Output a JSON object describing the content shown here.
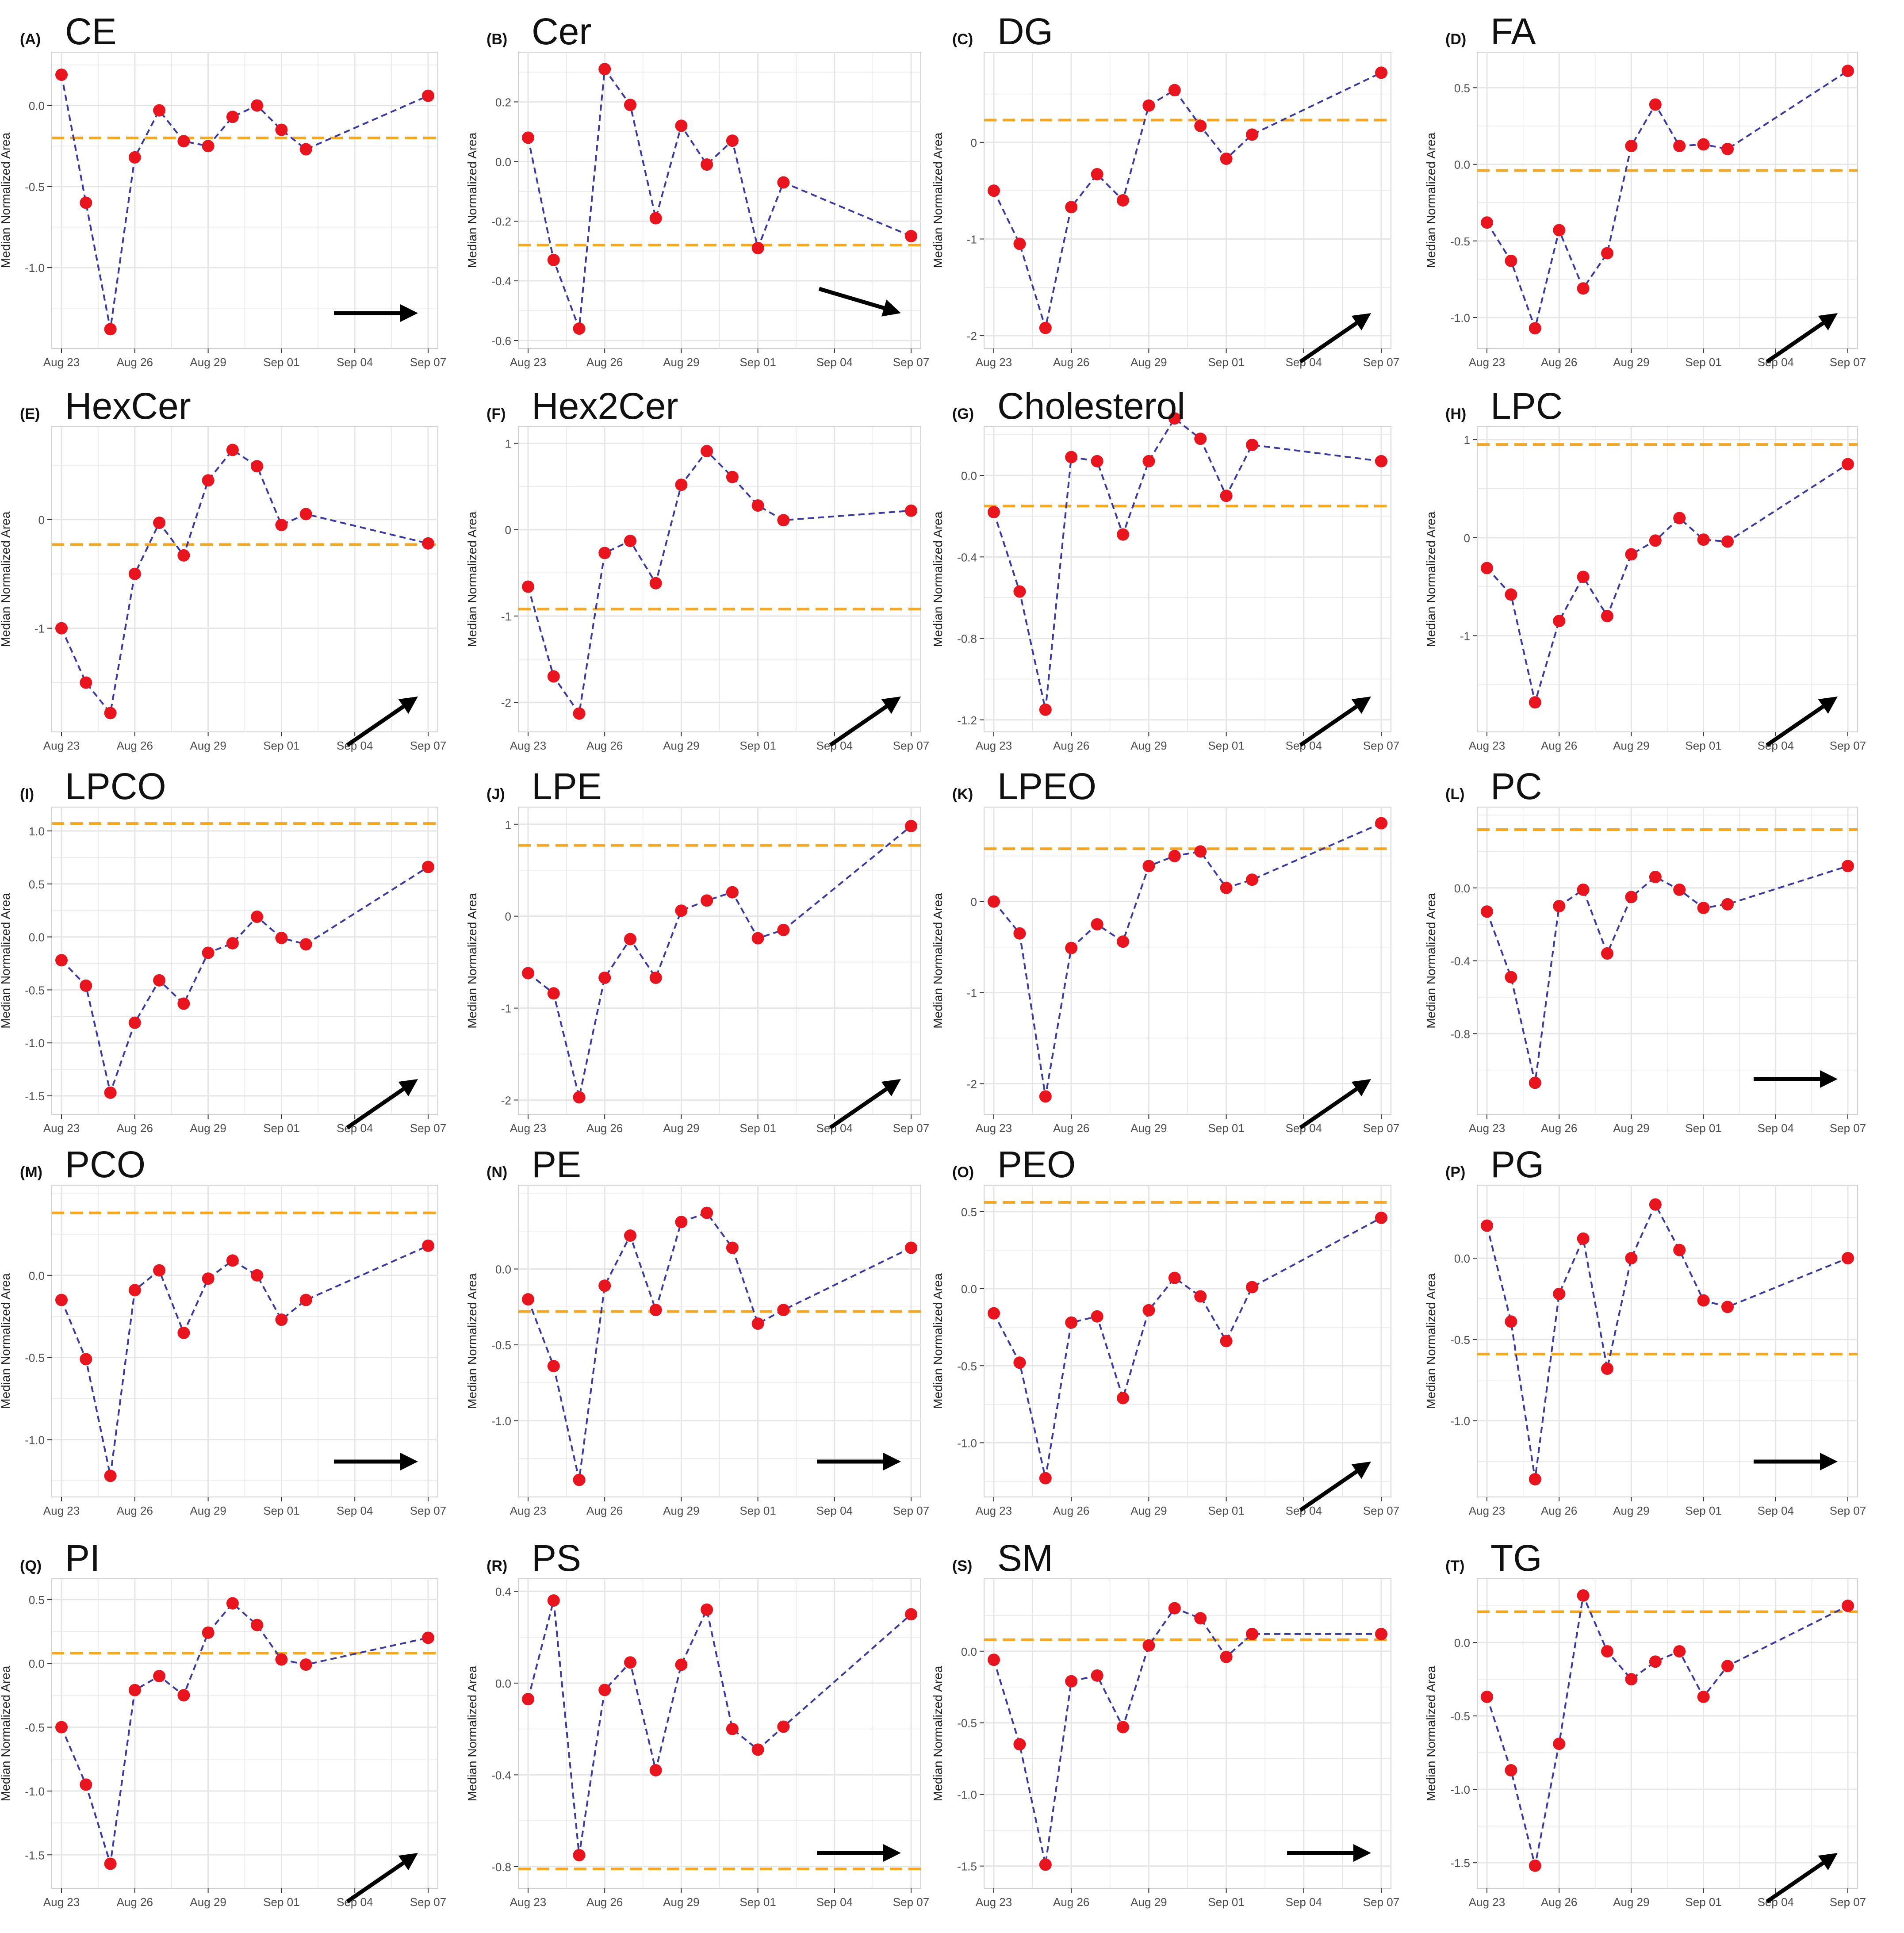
{
  "figure": {
    "ylabel": "Median Normalized Area",
    "xticks": [
      "Aug 23",
      "Aug 26",
      "Aug 29",
      "Sep 01",
      "Sep 04",
      "Sep 07"
    ],
    "x_range": [
      0,
      15
    ],
    "point_days": [
      0,
      1,
      2,
      3,
      4,
      5,
      6,
      7,
      8,
      9,
      10,
      11,
      15
    ],
    "colors": {
      "line": "#3a3aa0",
      "point": "#e8141e",
      "reference": "#f5a623",
      "grid": "#e6e6e6",
      "arrow": "#000000"
    }
  },
  "chart_data": [
    {
      "letter": "(A)",
      "title": "CE",
      "type": "line",
      "ylim": [
        -1.45,
        0.28
      ],
      "yticks": [
        0.0,
        -0.5,
        -1.0
      ],
      "ytick_labels": [
        "0.0",
        "-0.5",
        "-1.0"
      ],
      "values": [
        0.19,
        -0.6,
        -1.38,
        -0.32,
        -0.03,
        -0.22,
        -0.25,
        -0.07,
        0.0,
        -0.15,
        -0.27,
        null,
        0.06
      ],
      "reference": -0.2,
      "trend": "flat"
    },
    {
      "letter": "(B)",
      "title": "Cer",
      "type": "line",
      "ylim": [
        -0.6,
        0.34
      ],
      "yticks": [
        0.2,
        0.0,
        -0.2,
        -0.4,
        -0.6
      ],
      "ytick_labels": [
        "0.2",
        "0.0",
        "-0.2",
        "-0.4",
        "-0.6"
      ],
      "values": [
        0.08,
        -0.33,
        -0.56,
        0.31,
        0.19,
        -0.19,
        0.12,
        -0.01,
        0.07,
        -0.29,
        -0.07,
        null,
        -0.25
      ],
      "reference": -0.28,
      "trend": "down"
    },
    {
      "letter": "(C)",
      "title": "DG",
      "type": "line",
      "ylim": [
        -2.05,
        0.85
      ],
      "yticks": [
        0,
        -1,
        -2
      ],
      "ytick_labels": [
        "0",
        "-1",
        "-2"
      ],
      "values": [
        -0.5,
        -1.05,
        -1.92,
        -0.67,
        -0.33,
        -0.6,
        0.38,
        0.54,
        0.17,
        -0.17,
        0.08,
        null,
        0.72
      ],
      "reference": 0.23,
      "trend": "up"
    },
    {
      "letter": "(D)",
      "title": "FA",
      "type": "line",
      "ylim": [
        -1.15,
        0.68
      ],
      "yticks": [
        0.5,
        0.0,
        -0.5,
        -1.0
      ],
      "ytick_labels": [
        "0.5",
        "0.0",
        "-0.5",
        "-1.0"
      ],
      "values": [
        -0.38,
        -0.63,
        -1.07,
        -0.43,
        -0.81,
        -0.58,
        0.12,
        0.39,
        0.12,
        0.13,
        0.1,
        null,
        0.61
      ],
      "reference": -0.04,
      "trend": "up"
    },
    {
      "letter": "(E)",
      "title": "HexCer",
      "type": "line",
      "ylim": [
        -1.88,
        0.78
      ],
      "yticks": [
        0,
        -1
      ],
      "ytick_labels": [
        "0",
        "-1"
      ],
      "values": [
        -1.0,
        -1.5,
        -1.78,
        -0.5,
        -0.03,
        -0.33,
        0.36,
        0.64,
        0.49,
        -0.05,
        0.05,
        null,
        -0.22
      ],
      "reference": -0.23,
      "trend": "up"
    },
    {
      "letter": "(F)",
      "title": "Hex2Cer",
      "type": "line",
      "ylim": [
        -2.25,
        1.1
      ],
      "yticks": [
        1,
        0,
        -1,
        -2
      ],
      "ytick_labels": [
        "1",
        "0",
        "-1",
        "-2"
      ],
      "values": [
        -0.66,
        -1.7,
        -2.13,
        -0.27,
        -0.13,
        -0.62,
        0.52,
        0.91,
        0.61,
        0.28,
        0.11,
        null,
        0.22
      ],
      "reference": -0.92,
      "trend": "up"
    },
    {
      "letter": "(G)",
      "title": "Cholesterol",
      "type": "line",
      "ylim": [
        -1.22,
        0.2
      ],
      "yticks": [
        0.0,
        -0.4,
        -0.8,
        -1.2
      ],
      "ytick_labels": [
        "0.0",
        "-0.4",
        "-0.8",
        "-1.2"
      ],
      "values": [
        -0.18,
        -0.57,
        -1.15,
        0.09,
        0.07,
        -0.29,
        0.07,
        0.28,
        0.18,
        -0.1,
        0.15,
        null,
        0.07
      ],
      "reference": -0.15,
      "trend": "up"
    },
    {
      "letter": "(H)",
      "title": "LPC",
      "type": "line",
      "ylim": [
        -1.9,
        1.05
      ],
      "yticks": [
        1,
        0,
        -1
      ],
      "ytick_labels": [
        "1",
        "0",
        "-1"
      ],
      "values": [
        -0.31,
        -0.58,
        -1.68,
        -0.85,
        -0.4,
        -0.8,
        -0.17,
        -0.03,
        0.2,
        -0.02,
        -0.04,
        null,
        0.75
      ],
      "reference": 0.95,
      "trend": "up"
    },
    {
      "letter": "(I)",
      "title": "LPCO",
      "type": "line",
      "ylim": [
        -1.6,
        1.15
      ],
      "yticks": [
        1.0,
        0.5,
        0.0,
        -0.5,
        -1.0,
        -1.5
      ],
      "ytick_labels": [
        "1.0",
        "0.5",
        "0.0",
        "-0.5",
        "-1.0",
        "-1.5"
      ],
      "values": [
        -0.22,
        -0.46,
        -1.47,
        -0.81,
        -0.41,
        -0.63,
        -0.15,
        -0.06,
        0.19,
        -0.01,
        -0.07,
        null,
        0.66
      ],
      "reference": 1.07,
      "trend": "up"
    },
    {
      "letter": "(J)",
      "title": "LPE",
      "type": "line",
      "ylim": [
        -2.07,
        1.1
      ],
      "yticks": [
        1,
        0,
        -1,
        -2
      ],
      "ytick_labels": [
        "1",
        "0",
        "-1",
        "-2"
      ],
      "values": [
        -0.62,
        -0.84,
        -1.97,
        -0.67,
        -0.25,
        -0.67,
        0.06,
        0.17,
        0.26,
        -0.24,
        -0.15,
        null,
        0.98
      ],
      "reference": 0.77,
      "trend": "up"
    },
    {
      "letter": "(K)",
      "title": "LPEO",
      "type": "line",
      "ylim": [
        -2.25,
        0.95
      ],
      "yticks": [
        0,
        -1,
        -2
      ],
      "ytick_labels": [
        "0",
        "-1",
        "-2"
      ],
      "values": [
        0.0,
        -0.35,
        -2.14,
        -0.51,
        -0.25,
        -0.44,
        0.39,
        0.5,
        0.55,
        0.15,
        0.24,
        null,
        0.86
      ],
      "reference": 0.58,
      "trend": "up"
    },
    {
      "letter": "(L)",
      "title": "PC",
      "type": "line",
      "ylim": [
        -1.2,
        0.4
      ],
      "yticks": [
        0.0,
        -0.4,
        -0.8
      ],
      "ytick_labels": [
        "0.0",
        "-0.4",
        "-0.8"
      ],
      "values": [
        -0.13,
        -0.49,
        -1.07,
        -0.1,
        -0.01,
        -0.36,
        -0.05,
        0.06,
        -0.01,
        -0.11,
        -0.09,
        null,
        0.12
      ],
      "reference": 0.32,
      "trend": "flat"
    },
    {
      "letter": "(M)",
      "title": "PCO",
      "type": "line",
      "ylim": [
        -1.3,
        0.5
      ],
      "yticks": [
        0.0,
        -0.5,
        -1.0
      ],
      "ytick_labels": [
        "0.0",
        "-0.5",
        "-1.0"
      ],
      "values": [
        -0.15,
        -0.51,
        -1.22,
        -0.09,
        0.03,
        -0.35,
        -0.02,
        0.09,
        0.0,
        -0.27,
        -0.15,
        null,
        0.18
      ],
      "reference": 0.38,
      "trend": "flat"
    },
    {
      "letter": "(N)",
      "title": "PE",
      "type": "line",
      "ylim": [
        -1.45,
        0.5
      ],
      "yticks": [
        0.0,
        -0.5,
        -1.0
      ],
      "ytick_labels": [
        "0.0",
        "-0.5",
        "-1.0"
      ],
      "values": [
        -0.2,
        -0.64,
        -1.39,
        -0.11,
        0.22,
        -0.27,
        0.31,
        0.37,
        0.14,
        -0.36,
        -0.27,
        null,
        0.14
      ],
      "reference": -0.28,
      "trend": "flat"
    },
    {
      "letter": "(O)",
      "title": "PEO",
      "type": "line",
      "ylim": [
        -1.3,
        0.62
      ],
      "yticks": [
        0.5,
        0.0,
        -0.5,
        -1.0
      ],
      "ytick_labels": [
        "0.5",
        "0.0",
        "-0.5",
        "-1.0"
      ],
      "values": [
        -0.16,
        -0.48,
        -1.23,
        -0.22,
        -0.18,
        -0.71,
        -0.14,
        0.07,
        -0.05,
        -0.34,
        0.01,
        null,
        0.46
      ],
      "reference": 0.56,
      "trend": "up"
    },
    {
      "letter": "(P)",
      "title": "PG",
      "type": "line",
      "ylim": [
        -1.42,
        0.4
      ],
      "yticks": [
        0.0,
        -0.5,
        -1.0
      ],
      "ytick_labels": [
        "0.0",
        "-0.5",
        "-1.0"
      ],
      "values": [
        0.2,
        -0.39,
        -1.36,
        -0.22,
        0.12,
        -0.68,
        0.0,
        0.33,
        0.05,
        -0.26,
        -0.3,
        null,
        0.0
      ],
      "reference": -0.59,
      "trend": "flat"
    },
    {
      "letter": "(Q)",
      "title": "PI",
      "type": "line",
      "ylim": [
        -1.7,
        0.6
      ],
      "yticks": [
        0.5,
        0.0,
        -0.5,
        -1.0,
        -1.5
      ],
      "ytick_labels": [
        "0.5",
        "0.0",
        "-0.5",
        "-1.0",
        "-1.5"
      ],
      "values": [
        -0.5,
        -0.95,
        -1.57,
        -0.21,
        -0.1,
        -0.25,
        0.24,
        0.47,
        0.3,
        0.03,
        -0.01,
        null,
        0.2
      ],
      "reference": 0.08,
      "trend": "up"
    },
    {
      "letter": "(R)",
      "title": "PS",
      "type": "line",
      "ylim": [
        -0.86,
        0.42
      ],
      "yticks": [
        0.4,
        0.0,
        -0.4,
        -0.8
      ],
      "ytick_labels": [
        "0.4",
        "0.0",
        "-0.4",
        "-0.8"
      ],
      "values": [
        -0.07,
        0.36,
        -0.75,
        -0.03,
        0.09,
        -0.38,
        0.08,
        0.32,
        -0.2,
        -0.29,
        -0.19,
        null,
        0.3
      ],
      "reference": -0.81,
      "trend": "flat"
    },
    {
      "letter": "(S)",
      "title": "SM",
      "type": "line",
      "ylim": [
        -1.6,
        0.45
      ],
      "yticks": [
        0.0,
        -0.5,
        -1.0,
        -1.5
      ],
      "ytick_labels": [
        "0.0",
        "-0.5",
        "-1.0",
        "-1.5"
      ],
      "values": [
        -0.06,
        -0.65,
        -1.49,
        -0.21,
        -0.17,
        -0.53,
        0.04,
        0.3,
        0.23,
        -0.04,
        0.12,
        null,
        0.12
      ],
      "reference": 0.08,
      "trend": "flat"
    },
    {
      "letter": "(T)",
      "title": "TG",
      "type": "line",
      "ylim": [
        -1.62,
        0.38
      ],
      "yticks": [
        0.0,
        -0.5,
        -1.0,
        -1.5
      ],
      "ytick_labels": [
        "0.0",
        "-0.5",
        "-1.0",
        "-1.5"
      ],
      "values": [
        -0.37,
        -0.87,
        -1.52,
        -0.69,
        0.32,
        -0.06,
        -0.25,
        -0.13,
        -0.06,
        -0.37,
        -0.16,
        null,
        0.25
      ],
      "reference": 0.21,
      "trend": "up"
    }
  ]
}
